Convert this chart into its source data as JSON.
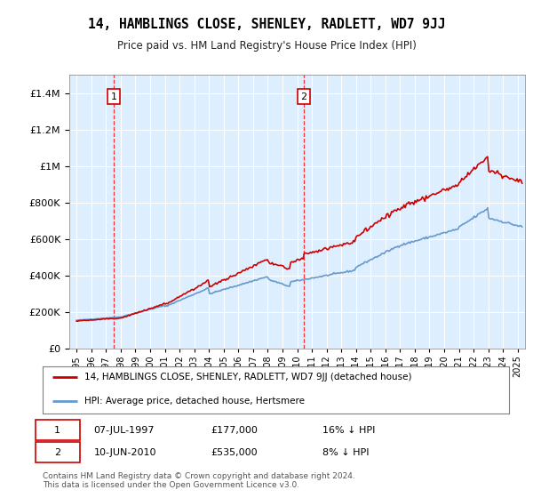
{
  "title": "14, HAMBLINGS CLOSE, SHENLEY, RADLETT, WD7 9JJ",
  "subtitle": "Price paid vs. HM Land Registry's House Price Index (HPI)",
  "property_label": "14, HAMBLINGS CLOSE, SHENLEY, RADLETT, WD7 9JJ (detached house)",
  "hpi_label": "HPI: Average price, detached house, Hertsmere",
  "property_color": "#cc0000",
  "hpi_color": "#6699cc",
  "background_color": "#ddeeff",
  "annotation1": {
    "label": "1",
    "date": "07-JUL-1997",
    "price": 177000,
    "note": "16% ↓ HPI"
  },
  "annotation2": {
    "label": "2",
    "date": "10-JUN-2010",
    "price": 535000,
    "note": "8% ↓ HPI"
  },
  "sale1_x": 1997.52,
  "sale2_x": 2010.44,
  "ylim": [
    0,
    1500000
  ],
  "xlim": [
    1994.5,
    2025.5
  ],
  "ylabel_ticks": [
    0,
    200000,
    400000,
    600000,
    800000,
    1000000,
    1200000,
    1400000
  ],
  "footer": "Contains HM Land Registry data © Crown copyright and database right 2024.\nThis data is licensed under the Open Government Licence v3.0."
}
